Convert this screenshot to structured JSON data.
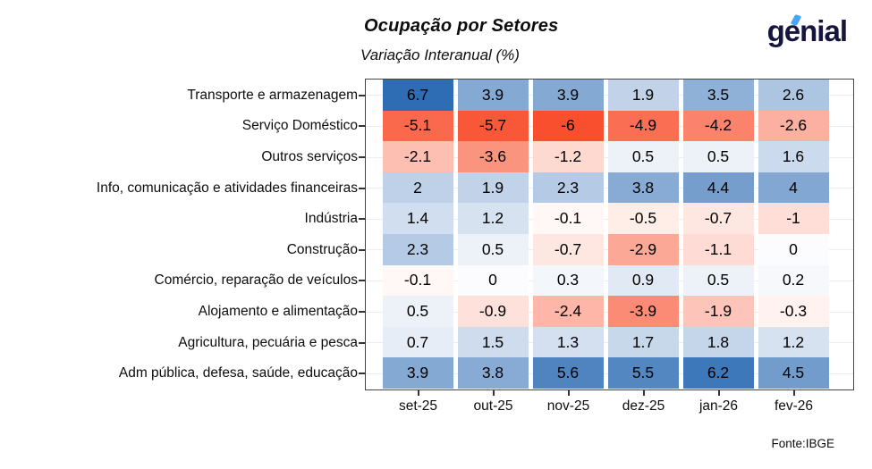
{
  "header": {
    "title": "Ocupação por Setores",
    "subtitle": "Variação Interanual (%)",
    "logo_text": "genial"
  },
  "footer": {
    "source": "Fonte:IBGE"
  },
  "chart_data": {
    "type": "heatmap",
    "title": "Ocupação por Setores",
    "subtitle": "Variação Interanual (%)",
    "legend": "none",
    "grid": true,
    "columns": [
      "set-25",
      "out-25",
      "nov-25",
      "dez-25",
      "jan-26",
      "fev-26"
    ],
    "rows": [
      {
        "label": "Transporte e armazenagem",
        "values": [
          6.7,
          3.9,
          3.9,
          1.9,
          3.5,
          2.6
        ]
      },
      {
        "label": "Serviço Doméstico",
        "values": [
          -5.1,
          -5.7,
          -6,
          -4.9,
          -4.2,
          -2.6
        ]
      },
      {
        "label": "Outros serviços",
        "values": [
          -2.1,
          -3.6,
          -1.2,
          0.5,
          0.5,
          1.6
        ]
      },
      {
        "label": "Info, comunicação e atividades financeiras",
        "values": [
          2,
          1.9,
          2.3,
          3.8,
          4.4,
          4
        ]
      },
      {
        "label": "Indústria",
        "values": [
          1.4,
          1.2,
          -0.1,
          -0.5,
          -0.7,
          -1
        ]
      },
      {
        "label": "Construção",
        "values": [
          2.3,
          0.5,
          -0.7,
          -2.9,
          -1.1,
          0
        ]
      },
      {
        "label": "Comércio, reparação de veículos",
        "values": [
          -0.1,
          0,
          0.3,
          0.9,
          0.5,
          0.2
        ]
      },
      {
        "label": "Alojamento e alimentação",
        "values": [
          0.5,
          -0.9,
          -2.4,
          -3.9,
          -1.9,
          -0.3
        ]
      },
      {
        "label": "Agricultura, pecuária e pesca",
        "values": [
          0.7,
          1.5,
          1.3,
          1.7,
          1.8,
          1.2
        ]
      },
      {
        "label": "Adm pública, defesa, saúde, educação",
        "values": [
          3.9,
          3.8,
          5.6,
          5.5,
          6.2,
          4.5
        ]
      }
    ],
    "palette": {
      "positive_max": "#2e6db4",
      "negative_max": "#f94f2e",
      "zero_positive": "#fcfcfe",
      "zero_negative": "#fffbf9",
      "logo_navy": "#15153f",
      "logo_accent_blue": "#49a5f6"
    },
    "domain": [
      -6,
      6.7
    ]
  }
}
